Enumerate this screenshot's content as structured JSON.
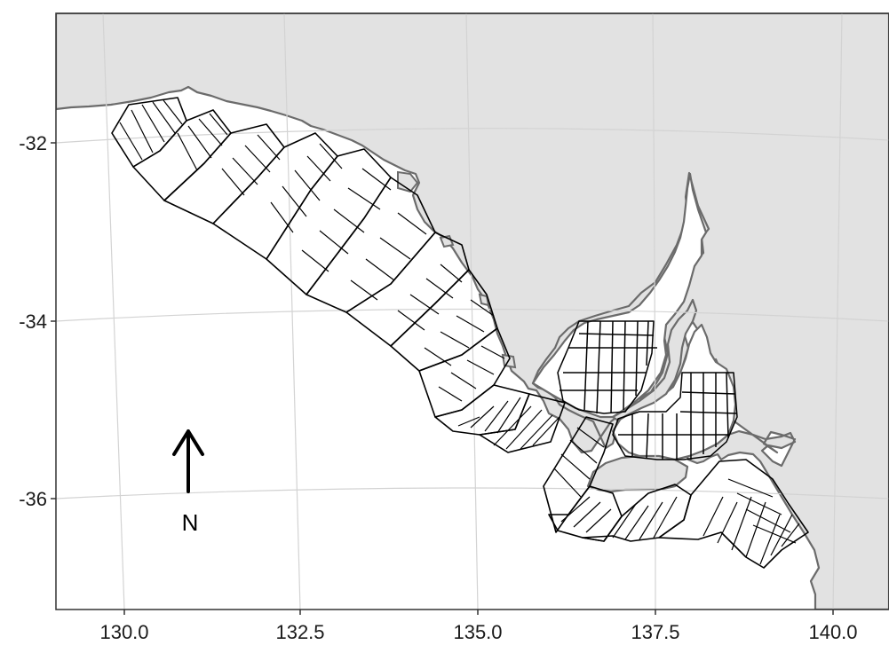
{
  "map": {
    "x_ticks": [
      "130.0",
      "132.5",
      "135.0",
      "137.5",
      "140.0"
    ],
    "y_ticks": [
      "-32",
      "-34",
      "-36"
    ],
    "north_label": "N",
    "colors": {
      "land": "#e2e2e2",
      "coast": "#6b6b6b",
      "sea": "#ffffff",
      "grid": "#d3d3d3",
      "cells": "#000000"
    },
    "projection": "curved graticule (Lambert-like)",
    "grid": true,
    "north_arrow": "bottom-left",
    "content": "fishing grid cells along South Australian coast"
  }
}
